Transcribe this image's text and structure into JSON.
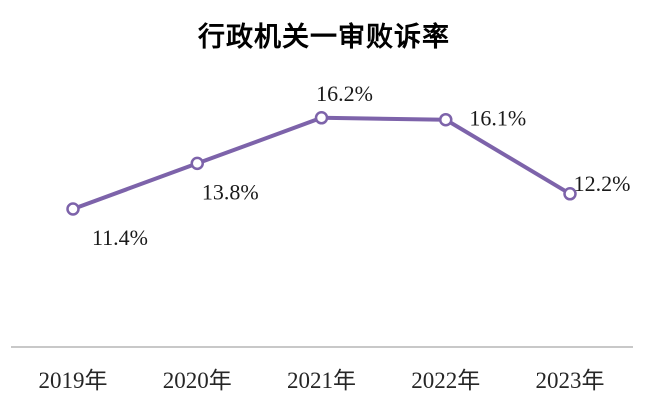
{
  "chart_data": {
    "type": "line",
    "title": "行政机关一审败诉率",
    "categories": [
      "2019年",
      "2020年",
      "2021年",
      "2022年",
      "2023年"
    ],
    "values": [
      11.4,
      13.8,
      16.2,
      16.1,
      12.2
    ],
    "point_labels": [
      "11.4%",
      "13.8%",
      "16.2%",
      "16.1%",
      "12.2%"
    ],
    "xlabel": "",
    "ylabel": "",
    "y_axis_visible": false,
    "grid": false,
    "legend": "none",
    "line_color": "#7D63AA",
    "marker_fill": "#FFFFFF",
    "label_color": "#1A1A1A",
    "axis_line_color": "#C8C8C8",
    "background_color": "#FFFFFF"
  }
}
